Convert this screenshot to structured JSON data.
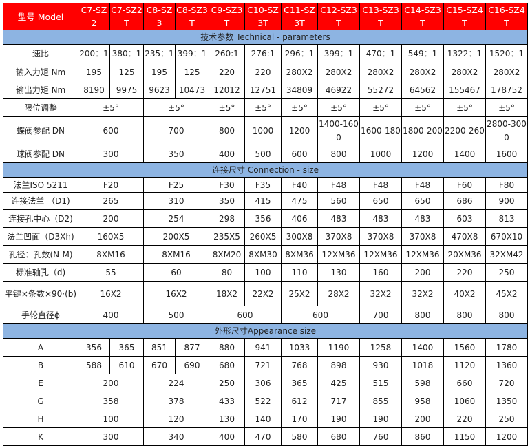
{
  "colors": {
    "header_bg": "#ff0000",
    "header_text": "#ffffff",
    "section_bg": "#8db4e2"
  },
  "header": {
    "label": "型号 Model",
    "models": [
      "C7-SZ2",
      "C7-SZ2T",
      "C8-SZ3",
      "C8-SZ3T",
      "C9-SZ3T",
      "C10-SZ3T",
      "C11-SZ3T",
      "C12-SZ3T",
      "C13-SZ3T",
      "C14-SZ3T",
      "C15-SZ4T",
      "C16-SZ4T"
    ]
  },
  "sections": [
    {
      "title": "技术参数 Technical - parameters",
      "rows": [
        {
          "label": "速比",
          "cells": [
            {
              "v": "200：1"
            },
            {
              "v": "380：1"
            },
            {
              "v": "235：1"
            },
            {
              "v": "399：1"
            },
            {
              "v": "260:1"
            },
            {
              "v": "276:1"
            },
            {
              "v": "296：1"
            },
            {
              "v": "399：1"
            },
            {
              "v": "470：1"
            },
            {
              "v": "549：1"
            },
            {
              "v": "1322：1"
            },
            {
              "v": "1520：1"
            }
          ]
        },
        {
          "label": "输入力矩 Nm",
          "cells": [
            {
              "v": "195"
            },
            {
              "v": "125"
            },
            {
              "v": "195"
            },
            {
              "v": "125"
            },
            {
              "v": "220"
            },
            {
              "v": "220"
            },
            {
              "v": "280X2"
            },
            {
              "v": "280X2"
            },
            {
              "v": "280X2"
            },
            {
              "v": "280X2"
            },
            {
              "v": "280X2"
            },
            {
              "v": "280X2"
            }
          ]
        },
        {
          "label": "输出力矩 Nm",
          "cells": [
            {
              "v": "8190"
            },
            {
              "v": "9975"
            },
            {
              "v": "9623"
            },
            {
              "v": "10473"
            },
            {
              "v": "12012"
            },
            {
              "v": "12751"
            },
            {
              "v": "34809"
            },
            {
              "v": "46922"
            },
            {
              "v": "55272"
            },
            {
              "v": "64562"
            },
            {
              "v": "155467"
            },
            {
              "v": "178752"
            }
          ]
        },
        {
          "label": "限位调整",
          "cells": [
            {
              "v": "±5°",
              "span": 2
            },
            {
              "v": "±5°",
              "span": 2
            },
            {
              "v": "±5°"
            },
            {
              "v": "±5°"
            },
            {
              "v": "±5°"
            },
            {
              "v": "±5°"
            },
            {
              "v": "±5°"
            },
            {
              "v": "±5°"
            },
            {
              "v": "±5°"
            },
            {
              "v": "±5°"
            }
          ]
        },
        {
          "label": "蝶阀参配 DN",
          "tall": true,
          "cells": [
            {
              "v": "600",
              "span": 2
            },
            {
              "v": "700",
              "span": 2
            },
            {
              "v": "800"
            },
            {
              "v": "1000"
            },
            {
              "v": "1200"
            },
            {
              "v": "1400-1600"
            },
            {
              "v": "1600-180"
            },
            {
              "v": "1800-200"
            },
            {
              "v": "2200-260"
            },
            {
              "v": "2800-3000"
            }
          ]
        },
        {
          "label": "球阀参配 DN",
          "cells": [
            {
              "v": "300",
              "span": 2
            },
            {
              "v": "350",
              "span": 2
            },
            {
              "v": "400"
            },
            {
              "v": "500"
            },
            {
              "v": "600"
            },
            {
              "v": "800"
            },
            {
              "v": "1000"
            },
            {
              "v": "1200"
            },
            {
              "v": "1400"
            },
            {
              "v": "1600"
            }
          ]
        }
      ]
    },
    {
      "title": "连接尺寸 Connection - size",
      "rows": [
        {
          "label": "法兰ISO 5211",
          "cells": [
            {
              "v": "F20",
              "span": 2
            },
            {
              "v": "F25",
              "span": 2
            },
            {
              "v": "F30"
            },
            {
              "v": "F35"
            },
            {
              "v": "F40"
            },
            {
              "v": "F48"
            },
            {
              "v": "F48"
            },
            {
              "v": "F48"
            },
            {
              "v": "F60"
            },
            {
              "v": "F80"
            }
          ]
        },
        {
          "label": "连接法兰 （D1)",
          "cells": [
            {
              "v": "265",
              "span": 2
            },
            {
              "v": "310",
              "span": 2
            },
            {
              "v": "350"
            },
            {
              "v": "415"
            },
            {
              "v": "475"
            },
            {
              "v": "560"
            },
            {
              "v": "650"
            },
            {
              "v": "650"
            },
            {
              "v": "686"
            },
            {
              "v": "900"
            }
          ]
        },
        {
          "label": "连接孔中心（D2)",
          "cells": [
            {
              "v": "200",
              "span": 2
            },
            {
              "v": "254",
              "span": 2
            },
            {
              "v": "298"
            },
            {
              "v": "356"
            },
            {
              "v": "406"
            },
            {
              "v": "483"
            },
            {
              "v": "483"
            },
            {
              "v": "483"
            },
            {
              "v": "603"
            },
            {
              "v": "813"
            }
          ]
        },
        {
          "label": "法兰凹面（D3Xh)",
          "cells": [
            {
              "v": "160X5",
              "span": 2
            },
            {
              "v": "200X5",
              "span": 2
            },
            {
              "v": "235X5"
            },
            {
              "v": "260X5"
            },
            {
              "v": "300X8"
            },
            {
              "v": "370X8"
            },
            {
              "v": "370X8"
            },
            {
              "v": "370X8"
            },
            {
              "v": "470X8"
            },
            {
              "v": "670X10"
            }
          ]
        },
        {
          "label": "孔径：孔数(N-M)",
          "cells": [
            {
              "v": "8XM16",
              "span": 2
            },
            {
              "v": "8XM16",
              "span": 2
            },
            {
              "v": "8XM20"
            },
            {
              "v": "8XM30"
            },
            {
              "v": "8XM36"
            },
            {
              "v": "12XM36"
            },
            {
              "v": "12XM36"
            },
            {
              "v": "12XM36"
            },
            {
              "v": "20XM36"
            },
            {
              "v": "32XM42"
            }
          ]
        },
        {
          "label": "标准轴孔（d)",
          "cells": [
            {
              "v": "55",
              "span": 2
            },
            {
              "v": "60",
              "span": 2
            },
            {
              "v": "80"
            },
            {
              "v": "100"
            },
            {
              "v": "110"
            },
            {
              "v": "130"
            },
            {
              "v": "160"
            },
            {
              "v": "200"
            },
            {
              "v": "220"
            },
            {
              "v": "250"
            }
          ]
        },
        {
          "label": "平键×条数×90·(b)",
          "tall": true,
          "cells": [
            {
              "v": "16X2",
              "span": 2
            },
            {
              "v": "16X2",
              "span": 2
            },
            {
              "v": "18X2"
            },
            {
              "v": "22X2"
            },
            {
              "v": "25X2"
            },
            {
              "v": "28X2"
            },
            {
              "v": "32X2"
            },
            {
              "v": "32X2"
            },
            {
              "v": "40X2"
            },
            {
              "v": "45X2"
            }
          ]
        },
        {
          "label": "手轮直径ϕ",
          "cells": [
            {
              "v": "400",
              "span": 2
            },
            {
              "v": "500",
              "span": 2
            },
            {
              "v": "600",
              "span": 2
            },
            {
              "v": "600",
              "span": 2
            },
            {
              "v": "700"
            },
            {
              "v": "800"
            },
            {
              "v": "800"
            },
            {
              "v": "800"
            }
          ]
        }
      ]
    },
    {
      "title": "外形尺寸Appearance  size",
      "rows": [
        {
          "label": "A",
          "cells": [
            {
              "v": "356"
            },
            {
              "v": "365"
            },
            {
              "v": "851"
            },
            {
              "v": "877"
            },
            {
              "v": "880"
            },
            {
              "v": "941"
            },
            {
              "v": "1033"
            },
            {
              "v": "1190"
            },
            {
              "v": "1258"
            },
            {
              "v": "1400"
            },
            {
              "v": "1560"
            },
            {
              "v": "1780"
            }
          ]
        },
        {
          "label": "B",
          "cells": [
            {
              "v": "588"
            },
            {
              "v": "610"
            },
            {
              "v": "670"
            },
            {
              "v": "690"
            },
            {
              "v": "680"
            },
            {
              "v": "721"
            },
            {
              "v": "768"
            },
            {
              "v": "898"
            },
            {
              "v": "930"
            },
            {
              "v": "1018"
            },
            {
              "v": "1120"
            },
            {
              "v": "1360"
            }
          ]
        },
        {
          "label": "E",
          "cells": [
            {
              "v": "200",
              "span": 2
            },
            {
              "v": "224",
              "span": 2
            },
            {
              "v": "250"
            },
            {
              "v": "306"
            },
            {
              "v": "365"
            },
            {
              "v": "425"
            },
            {
              "v": "515"
            },
            {
              "v": "598"
            },
            {
              "v": "660"
            },
            {
              "v": "720"
            }
          ]
        },
        {
          "label": "G",
          "cells": [
            {
              "v": "358",
              "span": 2
            },
            {
              "v": "378",
              "span": 2
            },
            {
              "v": "433"
            },
            {
              "v": "522"
            },
            {
              "v": "612"
            },
            {
              "v": "717"
            },
            {
              "v": "855"
            },
            {
              "v": "958"
            },
            {
              "v": "1060"
            },
            {
              "v": "1350"
            }
          ]
        },
        {
          "label": "H",
          "cells": [
            {
              "v": "100",
              "span": 2
            },
            {
              "v": "120",
              "span": 2
            },
            {
              "v": "130"
            },
            {
              "v": "140"
            },
            {
              "v": "170"
            },
            {
              "v": "190"
            },
            {
              "v": "190"
            },
            {
              "v": "200"
            },
            {
              "v": "220"
            },
            {
              "v": "250"
            }
          ]
        },
        {
          "label": "K",
          "cells": [
            {
              "v": "300",
              "span": 2
            },
            {
              "v": "340",
              "span": 2
            },
            {
              "v": "400"
            },
            {
              "v": "470"
            },
            {
              "v": "580"
            },
            {
              "v": "680"
            },
            {
              "v": "760"
            },
            {
              "v": "860"
            },
            {
              "v": "1150"
            },
            {
              "v": "1200"
            }
          ]
        }
      ]
    }
  ]
}
